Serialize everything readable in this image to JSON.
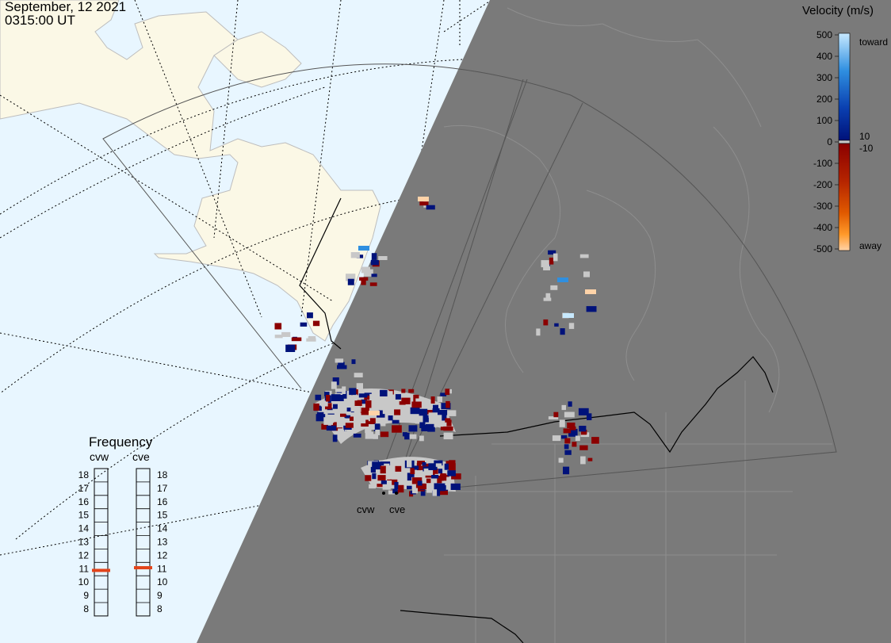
{
  "header": {
    "date": "September, 12 2021",
    "time": "0315:00 UT"
  },
  "velocity_scale": {
    "title": "Velocity (m/s)",
    "ticks": [
      "500",
      "400",
      "300",
      "200",
      "100",
      "0",
      "-100",
      "-200",
      "-300",
      "-400",
      "-500"
    ],
    "toward_label": "toward",
    "away_label": "away",
    "small_pos_label": "10",
    "small_neg_label": "-10",
    "colors": {
      "toward_high": "#c7e9ff",
      "toward_mid": "#2f8fe0",
      "toward_low": "#00127a",
      "ground": "#c8c8c8",
      "away_low": "#8b0000",
      "away_mid": "#e05a00",
      "away_high": "#ffd3a8"
    }
  },
  "frequency_panel": {
    "title": "Frequency",
    "radars": [
      {
        "name": "cvw",
        "freq_mhz": 10.9
      },
      {
        "name": "cve",
        "freq_mhz": 11.1
      }
    ],
    "levels": [
      "18",
      "17",
      "16",
      "15",
      "14",
      "13",
      "12",
      "11",
      "10",
      "9",
      "8"
    ]
  },
  "map": {
    "ocean_color": "#e8f6ff",
    "land_color": "#fbf8e6",
    "night_color": "#7a7a7a",
    "radar_sites": [
      {
        "label": "cvw"
      },
      {
        "label": "cve"
      }
    ]
  }
}
